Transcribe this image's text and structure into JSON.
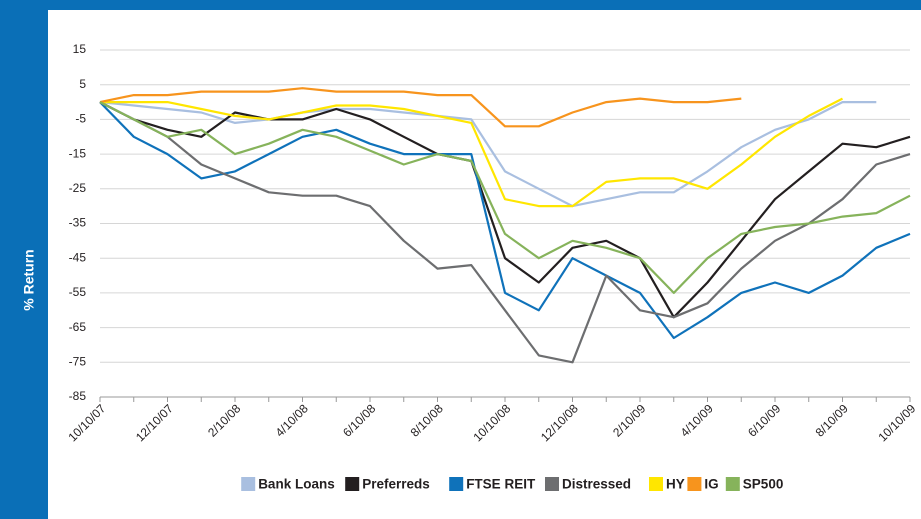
{
  "chart_data": {
    "type": "line",
    "y_label": "% Return",
    "categories": [
      "10/10/07",
      null,
      "12/10/07",
      null,
      "2/10/08",
      null,
      "4/10/08",
      null,
      "6/10/08",
      null,
      "8/10/08",
      null,
      "10/10/08",
      null,
      "12/10/08",
      null,
      "2/10/09",
      null,
      "4/10/09",
      null,
      "6/10/09",
      null,
      "8/10/09",
      null,
      "10/10/09"
    ],
    "series": [
      {
        "name": "Bank Loans",
        "color": "#a9bfe0",
        "values": [
          0,
          -1,
          -2,
          -3,
          -6,
          -5,
          -3,
          -2,
          -2,
          -3,
          -4,
          -5,
          -20,
          -25,
          -30,
          -28,
          -26,
          -26,
          -20,
          -13,
          -8,
          -5,
          0,
          0,
          null
        ]
      },
      {
        "name": "Preferreds",
        "color": "#231f20",
        "values": [
          0,
          -5,
          -8,
          -10,
          -3,
          -5,
          -5,
          -2,
          -5,
          -10,
          -15,
          -17,
          -45,
          -52,
          -42,
          -40,
          -45,
          -62,
          -52,
          -40,
          -28,
          -20,
          -12,
          -13,
          -10
        ]
      },
      {
        "name": "FTSE REIT",
        "color": "#0f72ba",
        "values": [
          0,
          -10,
          -15,
          -22,
          -20,
          -15,
          -10,
          -8,
          -12,
          -15,
          -15,
          -15,
          -55,
          -60,
          -45,
          -50,
          -55,
          -68,
          -62,
          -55,
          -52,
          -55,
          -50,
          -42,
          -38
        ]
      },
      {
        "name": "Distressed",
        "color": "#6d6e70",
        "values": [
          0,
          -5,
          -10,
          -18,
          -22,
          -26,
          -27,
          -27,
          -30,
          -40,
          -48,
          -47,
          -60,
          -73,
          -75,
          -50,
          -60,
          -62,
          -58,
          -48,
          -40,
          -35,
          -28,
          -18,
          -15
        ]
      },
      {
        "name": "HY",
        "color": "#ffe600",
        "values": [
          0,
          0,
          0,
          -2,
          -4,
          -5,
          -3,
          -1,
          -1,
          -2,
          -4,
          -6,
          -28,
          -30,
          -30,
          -23,
          -22,
          -22,
          -25,
          -18,
          -10,
          -4,
          1,
          null,
          null
        ]
      },
      {
        "name": "IG",
        "color": "#f7941d",
        "values": [
          0,
          2,
          2,
          3,
          3,
          3,
          4,
          3,
          3,
          3,
          2,
          2,
          -7,
          -7,
          -3,
          0,
          1,
          0,
          0,
          1,
          null,
          null,
          null,
          null,
          null
        ]
      },
      {
        "name": "SP500",
        "color": "#86b35b",
        "values": [
          0,
          -5,
          -10,
          -8,
          -15,
          -12,
          -8,
          -10,
          -14,
          -18,
          -15,
          -17,
          -38,
          -45,
          -40,
          -42,
          -45,
          -55,
          -45,
          -38,
          -36,
          -35,
          -33,
          -32,
          -27
        ]
      }
    ],
    "ylim": [
      -85,
      15
    ],
    "yticks": [
      -85,
      -75,
      -65,
      -55,
      -45,
      -35,
      -25,
      -15,
      -5,
      5,
      15
    ],
    "grid": true,
    "legend": "bottom"
  }
}
